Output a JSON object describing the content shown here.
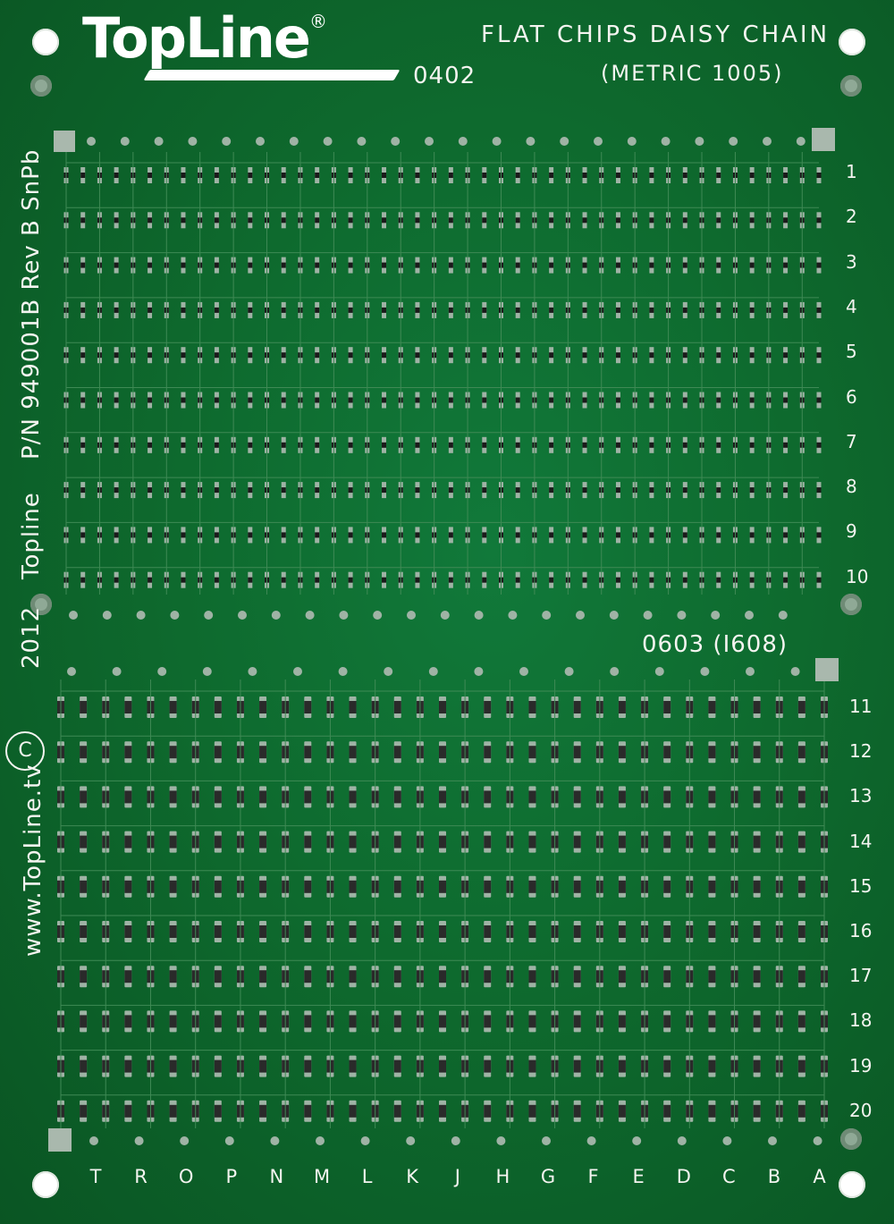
{
  "brand": {
    "name": "TopLine",
    "registered_mark": "®"
  },
  "header": {
    "title": "FLAT CHIPS DAISY CHAIN",
    "metric": "(METRIC 1005)",
    "upper_size": "0402",
    "lower_size": "0603 (I608)"
  },
  "side_text": {
    "part": "P/N 949001B Rev B SnPb",
    "maker": "Topline",
    "year": "2012",
    "copyright_symbol": "C",
    "website": "www.TopLine.tv"
  },
  "upper_rows": [
    "1",
    "2",
    "3",
    "4",
    "5",
    "6",
    "7",
    "8",
    "9",
    "10"
  ],
  "lower_rows": [
    "11",
    "12",
    "13",
    "14",
    "15",
    "16",
    "17",
    "18",
    "19",
    "20"
  ],
  "columns": [
    "T",
    "R",
    "O",
    "P",
    "N",
    "M",
    "L",
    "K",
    "J",
    "H",
    "G",
    "F",
    "E",
    "D",
    "C",
    "B",
    "A"
  ],
  "colors": {
    "board": "#0e6a2e",
    "silkscreen": "#f4f4f0",
    "pad": "#9fb3a5",
    "chip": "#1a1a1a"
  }
}
